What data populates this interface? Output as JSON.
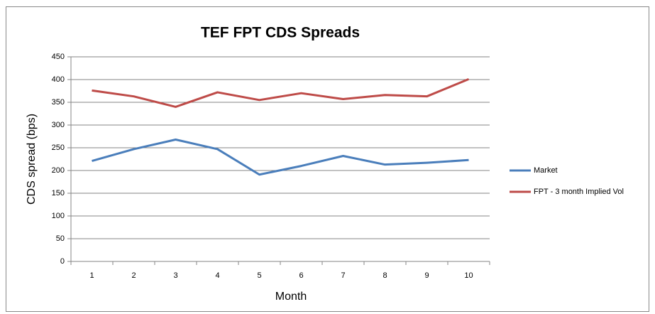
{
  "chart_data": {
    "type": "line",
    "title": "TEF FPT CDS Spreads",
    "x_label": "Month",
    "y_label": "CDS spread (bps)",
    "categories": [
      1,
      2,
      3,
      4,
      5,
      6,
      7,
      8,
      9,
      10
    ],
    "series": [
      {
        "name": "Market",
        "color": "#4a7ebb",
        "values": [
          221,
          247,
          268,
          247,
          191,
          210,
          232,
          213,
          217,
          223
        ]
      },
      {
        "name": "FPT - 3 month Implied Vol",
        "color": "#be4b48",
        "values": [
          376,
          363,
          340,
          372,
          355,
          370,
          357,
          366,
          363,
          401
        ]
      }
    ],
    "ylim": [
      0,
      450
    ],
    "yticks": [
      0,
      50,
      100,
      150,
      200,
      250,
      300,
      350,
      400,
      450
    ],
    "grid": true,
    "legend": "right"
  }
}
